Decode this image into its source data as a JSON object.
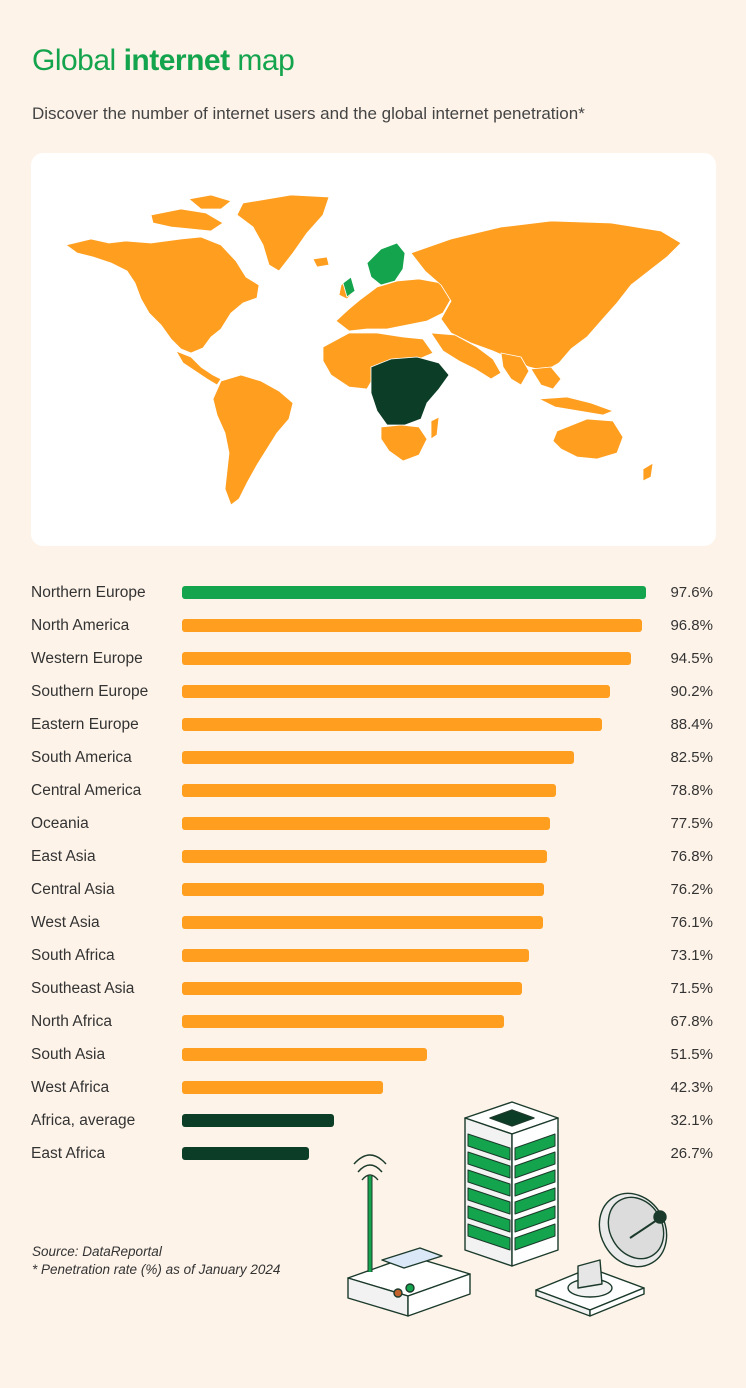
{
  "header": {
    "title_pre": "Global ",
    "title_bold": "internet",
    "title_post": " map",
    "subtitle": "Discover the number of internet users and the global internet penetration*"
  },
  "colors": {
    "green": "#14a44d",
    "orange": "#ff9e1f",
    "dark_green": "#0c3d26",
    "background": "#fdf3e9"
  },
  "chart_data": {
    "type": "bar",
    "orientation": "horizontal",
    "categories": [
      "Northern Europe",
      "North America",
      "Western Europe",
      "Southern Europe",
      "Eastern Europe",
      "South America",
      "Central America",
      "Oceania",
      "East Asia",
      "Central Asia",
      "West Asia",
      "South Africa",
      "Southeast Asia",
      "North Africa",
      "South Asia",
      "West Africa",
      "Africa, average",
      "East Africa"
    ],
    "values": [
      97.6,
      96.8,
      94.5,
      90.2,
      88.4,
      82.5,
      78.8,
      77.5,
      76.8,
      76.2,
      76.1,
      73.1,
      71.5,
      67.8,
      51.5,
      42.3,
      32.1,
      26.7
    ],
    "value_labels": [
      "97.6%",
      "96.8%",
      "94.5%",
      "90.2%",
      "88.4%",
      "82.5%",
      "78.8%",
      "77.5%",
      "76.8%",
      "76.2%",
      "76.1%",
      "73.1%",
      "71.5%",
      "67.8%",
      "51.5%",
      "42.3%",
      "32.1%",
      "26.7%"
    ],
    "bar_colors": [
      "#14a44d",
      "#ff9e1f",
      "#ff9e1f",
      "#ff9e1f",
      "#ff9e1f",
      "#ff9e1f",
      "#ff9e1f",
      "#ff9e1f",
      "#ff9e1f",
      "#ff9e1f",
      "#ff9e1f",
      "#ff9e1f",
      "#ff9e1f",
      "#ff9e1f",
      "#ff9e1f",
      "#ff9e1f",
      "#0c3d26",
      "#0c3d26"
    ],
    "xlim": [
      0,
      100
    ],
    "grid": false,
    "legend": "none"
  },
  "footer": {
    "source": "Source: DataReportal",
    "note": "* Penetration rate (%) as of January 2024"
  }
}
